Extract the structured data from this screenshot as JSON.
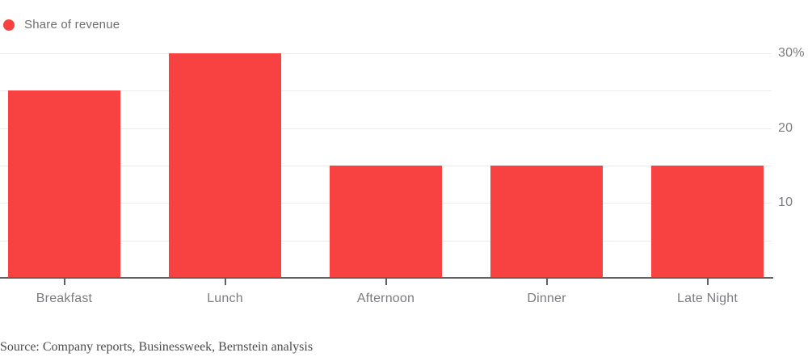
{
  "legend": {
    "label": "Share of revenue"
  },
  "source": "Source: Company reports, Businessweek, Bernstein analysis",
  "colors": {
    "bar": "#f84241",
    "grid": "#ebebeb",
    "axis": "#5f6265",
    "tick_label": "#797c80",
    "legend_text": "#6b6e71",
    "source_text": "#4b4b4b",
    "background": "#ffffff"
  },
  "chart_data": {
    "type": "bar",
    "title": "",
    "categories": [
      "Breakfast",
      "Lunch",
      "Afternoon",
      "Dinner",
      "Late Night"
    ],
    "values": [
      25,
      30,
      15,
      15,
      15
    ],
    "series_name": "Share of revenue",
    "unit": "percent",
    "xlabel": "",
    "ylabel": "",
    "ylim": [
      0,
      30
    ],
    "gridlines": [
      5,
      10,
      15,
      20,
      25,
      30
    ],
    "yticks": [
      {
        "value": 30,
        "label": "30%"
      },
      {
        "value": 20,
        "label": "20"
      },
      {
        "value": 10,
        "label": "10"
      }
    ],
    "grid": true,
    "legend_position": "top-left",
    "y_axis_side": "right"
  }
}
